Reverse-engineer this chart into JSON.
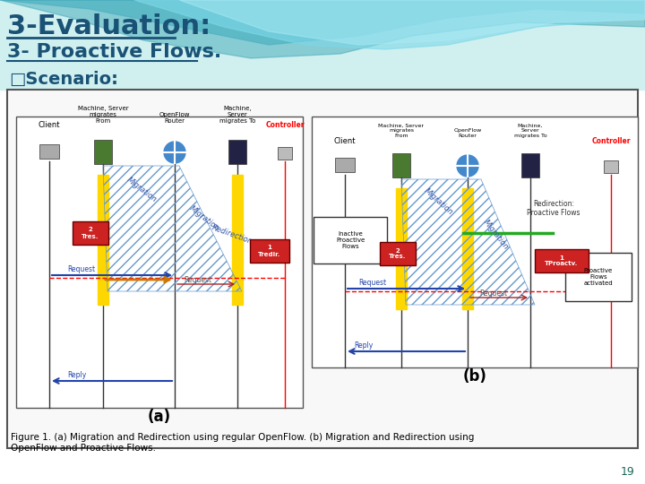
{
  "title1": "3-Evaluation:",
  "title2": "3- Proactive Flows.",
  "scenario_label": "□Scenario:",
  "fig_caption": "Figure 1. (a) Migration and Redirection using regular OpenFlow. (b) Migration and Redirection using\nOpenFlow and Proactive Flows.",
  "label_a": "(a)",
  "label_b": "(b)",
  "page_number": "19",
  "title1_color": "#1a5276",
  "title2_color": "#1a5276",
  "scenario_color": "#1a5276",
  "caption_color": "#1a1a1a",
  "wave_color": "#5bc8c8"
}
